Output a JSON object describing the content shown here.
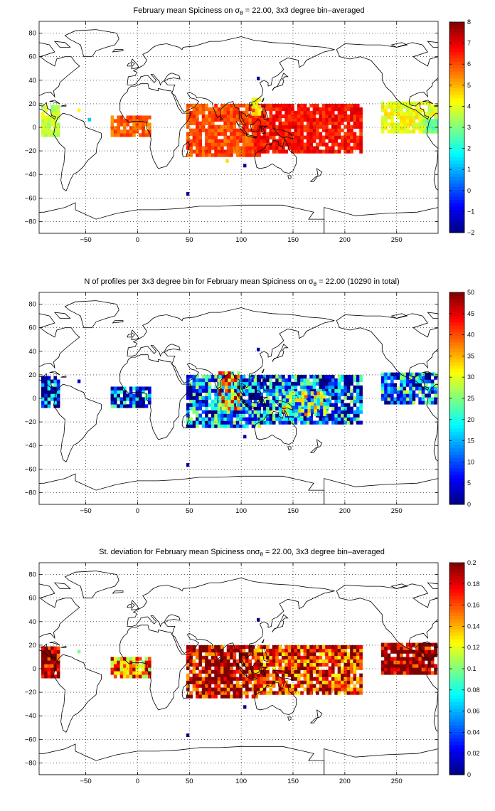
{
  "chart_data": [
    {
      "type": "heatmap",
      "title": {
        "pre": "February mean Spiciness on ",
        "sym": "σ",
        "sub": "θ",
        "post": " = 22.00, 3x3 degree bin–averaged"
      },
      "xlim": [
        -95,
        290
      ],
      "ylim": [
        -90,
        90
      ],
      "xticks": [
        -50,
        0,
        50,
        100,
        150,
        200,
        250
      ],
      "yticks": [
        -80,
        -60,
        -40,
        -20,
        0,
        20,
        40,
        60,
        80
      ],
      "grid": true,
      "colorbar": {
        "range": [
          -2,
          8
        ],
        "ticks": [
          -2,
          -1,
          0,
          1,
          2,
          3,
          4,
          5,
          6,
          7,
          8
        ],
        "colormap": "jet",
        "placement": "right"
      },
      "regions": [
        {
          "x": [
            -93,
            -75
          ],
          "y": [
            -8,
            18
          ],
          "value": 3.7
        },
        {
          "x": [
            -26,
            12
          ],
          "y": [
            -8,
            10
          ],
          "value": 5.8
        },
        {
          "x": [
            47,
            118
          ],
          "y": [
            -25,
            20
          ],
          "value": 6.0
        },
        {
          "x": [
            112,
            215
          ],
          "y": [
            -22,
            18
          ],
          "value": 6.6
        },
        {
          "x": [
            110,
            118
          ],
          "y": [
            10,
            24
          ],
          "value": 4.2
        },
        {
          "x": [
            235,
            288
          ],
          "y": [
            -5,
            20
          ],
          "value": 4.1
        },
        {
          "x": [
            275,
            288
          ],
          "y": [
            -5,
            6
          ],
          "value": 2.8
        }
      ],
      "points": [
        {
          "x": -58,
          "y": 13,
          "value": 4.3
        },
        {
          "x": -48,
          "y": 5,
          "value": 1.2
        },
        {
          "x": 115,
          "y": 40,
          "value": -1.8
        },
        {
          "x": 102,
          "y": -34,
          "value": -1.8
        },
        {
          "x": 47,
          "y": -58,
          "value": -1.8
        },
        {
          "x": 85,
          "y": -30,
          "value": 4.6
        }
      ]
    },
    {
      "type": "heatmap",
      "title": {
        "pre": "N of profiles per 3x3 degree bin for February mean Spiciness on ",
        "sym": "σ",
        "sub": "θ",
        "post": " = 22.00 (10290 in total)"
      },
      "xlim": [
        -95,
        290
      ],
      "ylim": [
        -90,
        90
      ],
      "xticks": [
        -50,
        0,
        50,
        100,
        150,
        200,
        250
      ],
      "yticks": [
        -80,
        -60,
        -40,
        -20,
        0,
        20,
        40,
        60,
        80
      ],
      "grid": true,
      "total_profiles": 10290,
      "colorbar": {
        "range": [
          0,
          50
        ],
        "ticks": [
          0,
          5,
          10,
          15,
          20,
          25,
          30,
          35,
          40,
          45,
          50
        ],
        "colormap": "jet",
        "placement": "right"
      },
      "regions": [
        {
          "x": [
            -93,
            -75
          ],
          "y": [
            -8,
            18
          ],
          "value": 6
        },
        {
          "x": [
            -26,
            12
          ],
          "y": [
            -8,
            10
          ],
          "value": 7
        },
        {
          "x": [
            47,
            118
          ],
          "y": [
            -25,
            20
          ],
          "value": 12
        },
        {
          "x": [
            78,
            98
          ],
          "y": [
            -10,
            22
          ],
          "value": 32
        },
        {
          "x": [
            112,
            215
          ],
          "y": [
            -22,
            18
          ],
          "value": 10
        },
        {
          "x": [
            140,
            185
          ],
          "y": [
            -15,
            5
          ],
          "value": 22
        },
        {
          "x": [
            235,
            288
          ],
          "y": [
            -5,
            20
          ],
          "value": 12
        }
      ],
      "points": [
        {
          "x": -58,
          "y": 13,
          "value": 3
        },
        {
          "x": 115,
          "y": 40,
          "value": 2
        },
        {
          "x": 102,
          "y": -34,
          "value": 2
        },
        {
          "x": 47,
          "y": -58,
          "value": 2
        }
      ]
    },
    {
      "type": "heatmap",
      "title": {
        "pre": "St. deviation for February mean Spiciness on",
        "sym": "σ",
        "sub": "θ",
        "post": " = 22.00, 3x3 degree bin–averaged"
      },
      "xlim": [
        -95,
        290
      ],
      "ylim": [
        -90,
        90
      ],
      "xticks": [
        -50,
        0,
        50,
        100,
        150,
        200,
        250
      ],
      "yticks": [
        -80,
        -60,
        -40,
        -20,
        0,
        20,
        40,
        60,
        80
      ],
      "grid": true,
      "colorbar": {
        "range": [
          0,
          0.2
        ],
        "ticks": [
          0,
          0.02,
          0.04,
          0.06,
          0.08,
          0.1,
          0.12,
          0.14,
          0.16,
          0.18,
          0.2
        ],
        "colormap": "jet",
        "placement": "right"
      },
      "regions": [
        {
          "x": [
            -93,
            -75
          ],
          "y": [
            -8,
            18
          ],
          "value": 0.2
        },
        {
          "x": [
            -26,
            12
          ],
          "y": [
            -8,
            10
          ],
          "value": 0.15
        },
        {
          "x": [
            47,
            118
          ],
          "y": [
            -25,
            20
          ],
          "value": 0.19
        },
        {
          "x": [
            112,
            215
          ],
          "y": [
            -22,
            18
          ],
          "value": 0.17
        },
        {
          "x": [
            235,
            288
          ],
          "y": [
            -5,
            20
          ],
          "value": 0.2
        }
      ],
      "points": [
        {
          "x": -58,
          "y": 13,
          "value": 0.1
        },
        {
          "x": 115,
          "y": 40,
          "value": 0.0
        },
        {
          "x": 102,
          "y": -34,
          "value": 0.0
        },
        {
          "x": 47,
          "y": -58,
          "value": 0.0
        }
      ]
    }
  ]
}
